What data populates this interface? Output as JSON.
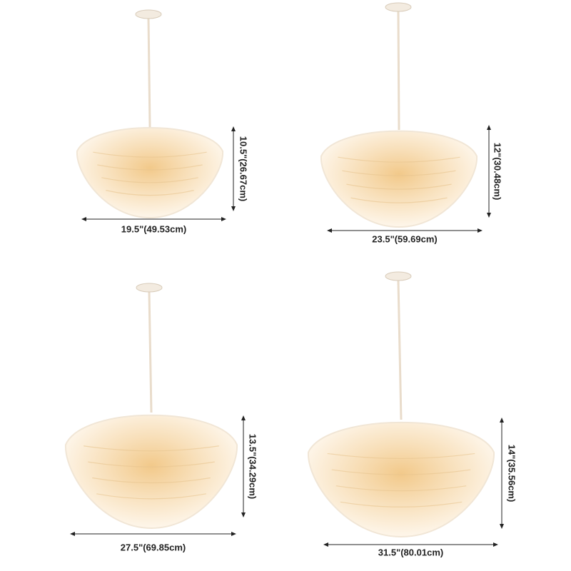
{
  "lamps": [
    {
      "width": "19.5\"(49.53cm)",
      "height": "10.5\"(26.67cm)"
    },
    {
      "width": "23.5\"(59.69cm)",
      "height": "12\"(30.48cm)"
    },
    {
      "width": "27.5\"(69.85cm)",
      "height": "13.5\"(34.29cm)"
    },
    {
      "width": "31.5\"(80.01cm)",
      "height": "14\"(35.56cm)"
    }
  ]
}
